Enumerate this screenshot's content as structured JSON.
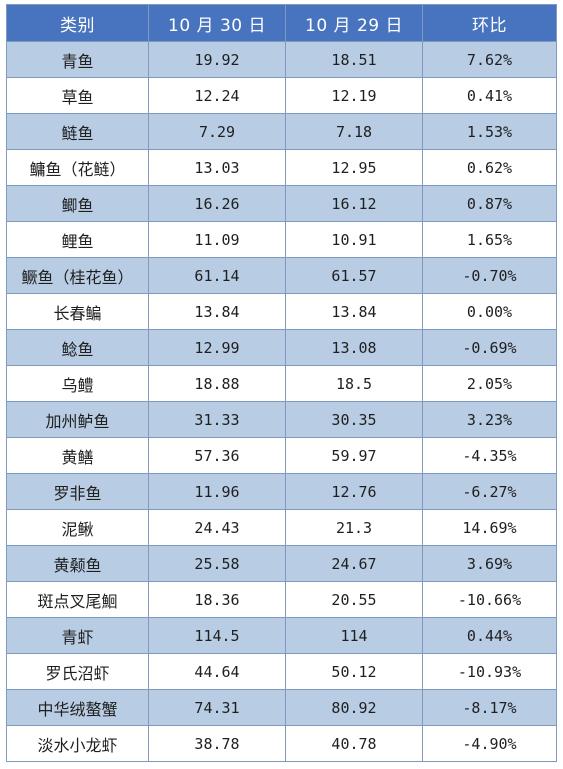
{
  "table": {
    "headers": [
      "类别",
      "10 月 30 日",
      "10 月 29 日",
      "环比"
    ],
    "rows": [
      [
        "青鱼",
        "19.92",
        "18.51",
        "7.62%"
      ],
      [
        "草鱼",
        "12.24",
        "12.19",
        "0.41%"
      ],
      [
        "鲢鱼",
        "7.29",
        "7.18",
        "1.53%"
      ],
      [
        "鳙鱼（花鲢）",
        "13.03",
        "12.95",
        "0.62%"
      ],
      [
        "鲫鱼",
        "16.26",
        "16.12",
        "0.87%"
      ],
      [
        "鲤鱼",
        "11.09",
        "10.91",
        "1.65%"
      ],
      [
        "鳜鱼（桂花鱼）",
        "61.14",
        "61.57",
        "-0.70%"
      ],
      [
        "长春鳊",
        "13.84",
        "13.84",
        "0.00%"
      ],
      [
        "鲶鱼",
        "12.99",
        "13.08",
        "-0.69%"
      ],
      [
        "乌鳢",
        "18.88",
        "18.5",
        "2.05%"
      ],
      [
        "加州鲈鱼",
        "31.33",
        "30.35",
        "3.23%"
      ],
      [
        "黄鳝",
        "57.36",
        "59.97",
        "-4.35%"
      ],
      [
        "罗非鱼",
        "11.96",
        "12.76",
        "-6.27%"
      ],
      [
        "泥鳅",
        "24.43",
        "21.3",
        "14.69%"
      ],
      [
        "黄颡鱼",
        "25.58",
        "24.67",
        "3.69%"
      ],
      [
        "斑点叉尾鮰",
        "18.36",
        "20.55",
        "-10.66%"
      ],
      [
        "青虾",
        "114.5",
        "114",
        "0.44%"
      ],
      [
        "罗氏沼虾",
        "44.64",
        "50.12",
        "-10.93%"
      ],
      [
        "中华绒螯蟹",
        "74.31",
        "80.92",
        "-8.17%"
      ],
      [
        "淡水小龙虾",
        "38.78",
        "40.78",
        "-4.90%"
      ]
    ]
  },
  "colors": {
    "header_bg": "#4874bf",
    "header_text": "#ffffff",
    "band_bg": "#b8cce4",
    "row_bg": "#ffffff",
    "border": "#7f99bf"
  }
}
